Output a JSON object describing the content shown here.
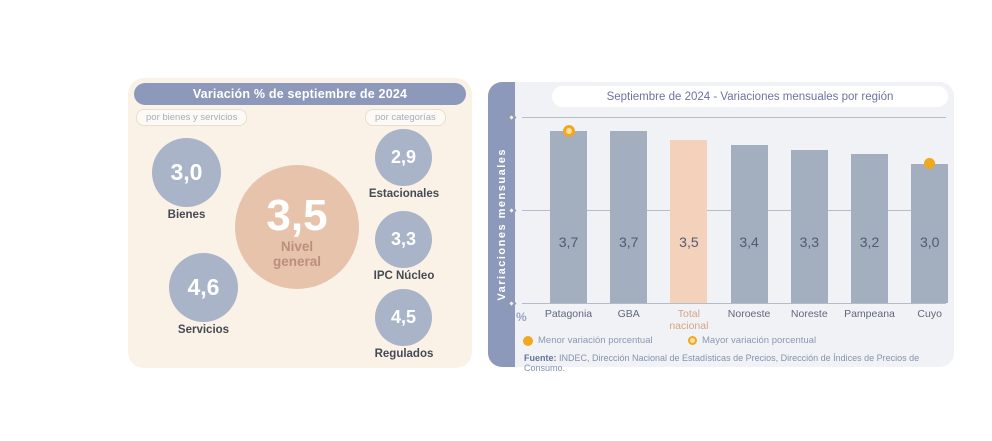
{
  "left_panel": {
    "title": "Variación % de septiembre de 2024",
    "group_left_label": "por bienes y servicios",
    "group_right_label": "por categorías",
    "center": {
      "value": "3,5",
      "label": "Nivel general"
    },
    "bienes": {
      "value": "3,0",
      "label": "Bienes"
    },
    "servicios": {
      "value": "4,6",
      "label": "Servicios"
    },
    "categorias": [
      {
        "value": "2,9",
        "label": "Estacionales"
      },
      {
        "value": "3,3",
        "label": "IPC Núcleo"
      },
      {
        "value": "4,5",
        "label": "Regulados"
      }
    ],
    "colors": {
      "card_bg": "#faf2e7",
      "header_bg": "#8d99bb",
      "circle_gray": "#a9b4c8",
      "circle_salmon": "#e8c3ac"
    }
  },
  "right_panel": {
    "title": "Septiembre de 2024 - Variaciones mensuales por región",
    "y_axis_label": "Variaciones mensuales",
    "percent_label": "%",
    "legend": [
      {
        "label": "Menor variación porcentual",
        "style": "solid"
      },
      {
        "label": "Mayor variación porcentual",
        "style": "ring"
      }
    ],
    "source_prefix": "Fuente:",
    "source_text": " INDEC, Dirección Nacional de Estadísticas de Precios, Dirección de Índices de Precios de Consumo.",
    "colors": {
      "card_bg": "#f1f2f5",
      "rail_bg": "#8d99bb",
      "marker_orange": "#f0a81f"
    }
  },
  "chart_data": {
    "type": "bar",
    "title": "Septiembre de 2024 - Variaciones mensuales por región",
    "ylabel": "Variaciones mensuales",
    "xlabel": "",
    "categories": [
      "Patagonia",
      "GBA",
      "Total nacional",
      "Noroeste",
      "Noreste",
      "Pampeana",
      "Cuyo"
    ],
    "values": [
      3.7,
      3.7,
      3.5,
      3.4,
      3.3,
      3.2,
      3.0
    ],
    "value_labels": [
      "3,7",
      "3,7",
      "3,5",
      "3,4",
      "3,3",
      "3,2",
      "3,0"
    ],
    "ylim": [
      0,
      4
    ],
    "yticks": [
      0,
      2,
      4
    ],
    "grid": true,
    "legend_position": "bottom",
    "bar_color": "#a3aebf",
    "highlight_index": 2,
    "highlight_color": "#f3d1ba",
    "max_marker_index": 0,
    "min_marker_index": 6,
    "marker_color": "#f0a81f"
  }
}
